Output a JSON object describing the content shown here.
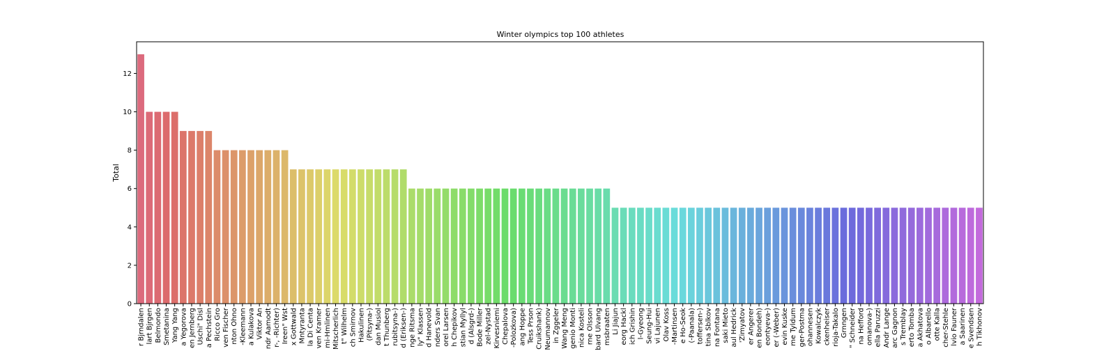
{
  "chart_data": {
    "type": "bar",
    "title": "Winter olympics top 100 athletes",
    "y_label": "Total",
    "palette": "husl",
    "categories": [
      "r Bjrndalen",
      "lart Bjrgen",
      "Belmondo",
      "Smetanina",
      "Yang Yang",
      "a Yegorova",
      "en Jernberg",
      "Uschi\" Disl",
      "a Pechstein",
      "Ricco Gro",
      "ven Fischer",
      "nton Ohno",
      "-Kleemann",
      "a Kulakova",
      "Viktor An",
      "ndr Aamodt",
      "r-, -Richter)",
      "Ireen\" Wst",
      "x Gottwald",
      "Mntyranta",
      "la Di Centa",
      "ven Kramer",
      "mi-Hmlinen",
      "Mitscherlich",
      "t\" Wilhelm",
      "ch Smirnov",
      "Hakulinen",
      "(Pitsyna-)",
      "dan Musiol",
      "t Thunberg",
      "rubitsyna-)",
      "d (Eriksen-)",
      "nge Ritsma",
      "ly\" Klassen",
      "d Hanevold",
      "nders Svan",
      "orel Larsen",
      "h Chepikov",
      "stian Myllyl",
      "d (Alsgrd-)",
      "Bode Miller",
      "zel-Nystad",
      "Kirvesniemi",
      "Chepalova",
      "-Polozkova)",
      "ang Hoppe",
      "Tess Prson",
      "Cruikshank)",
      "Neumannov",
      "in Zggeler",
      "Wang Meng",
      "genio Monti",
      "nica Kosteli",
      "rne Olsson",
      "bard Ulvang",
      "msbraaten",
      "Li Jiajun",
      "eorg Hackl",
      "ich Grishin",
      "l-Gyeong",
      "Seung-Hui",
      "vi Lajunen",
      "Olav Koss",
      "-Martinsen",
      "e Ho-Seok",
      "(-Paanala)",
      "toffersen-)",
      "tina Sblkov",
      "na Fontana",
      "saki Mieto",
      "aul Hedrick",
      "'Zimyatov",
      "er Angerer",
      "en Bondeh)",
      "eontyeva-)",
      "er (-Weber)",
      "evin Kuske",
      "me Tyldum",
      "ger-Postma",
      "ohannesen",
      "Kowalczyk",
      "ckenheiser",
      "rioja-Takalo",
      "Grnngen",
      "\" Schneider",
      "na Hefford",
      "omanova-)",
      "ella Paruzzi",
      "Andr Lange",
      "arc Gagnon",
      "s Tremblay",
      "erto Tomba",
      "a Akhatova",
      "o Albarello",
      "otte Kalla",
      "cher-Stehle",
      "lvio Fauner",
      "a Saarinen",
      "e Svendsen",
      "h Tikhonov"
    ],
    "values": [
      13,
      10,
      10,
      10,
      10,
      9,
      9,
      9,
      9,
      8,
      8,
      8,
      8,
      8,
      8,
      8,
      8,
      8,
      7,
      7,
      7,
      7,
      7,
      7,
      7,
      7,
      7,
      7,
      7,
      7,
      7,
      7,
      6,
      6,
      6,
      6,
      6,
      6,
      6,
      6,
      6,
      6,
      6,
      6,
      6,
      6,
      6,
      6,
      6,
      6,
      6,
      6,
      6,
      6,
      6,
      6,
      5,
      5,
      5,
      5,
      5,
      5,
      5,
      5,
      5,
      5,
      5,
      5,
      5,
      5,
      5,
      5,
      5,
      5,
      5,
      5,
      5,
      5,
      5,
      5,
      5,
      5,
      5,
      5,
      5,
      5,
      5,
      5,
      5,
      5,
      5,
      5,
      5,
      5,
      5,
      5,
      5,
      5,
      5,
      5
    ],
    "ylim": [
      0,
      13.65
    ],
    "yticks": [
      0,
      2,
      4,
      6,
      8,
      10,
      12
    ]
  }
}
